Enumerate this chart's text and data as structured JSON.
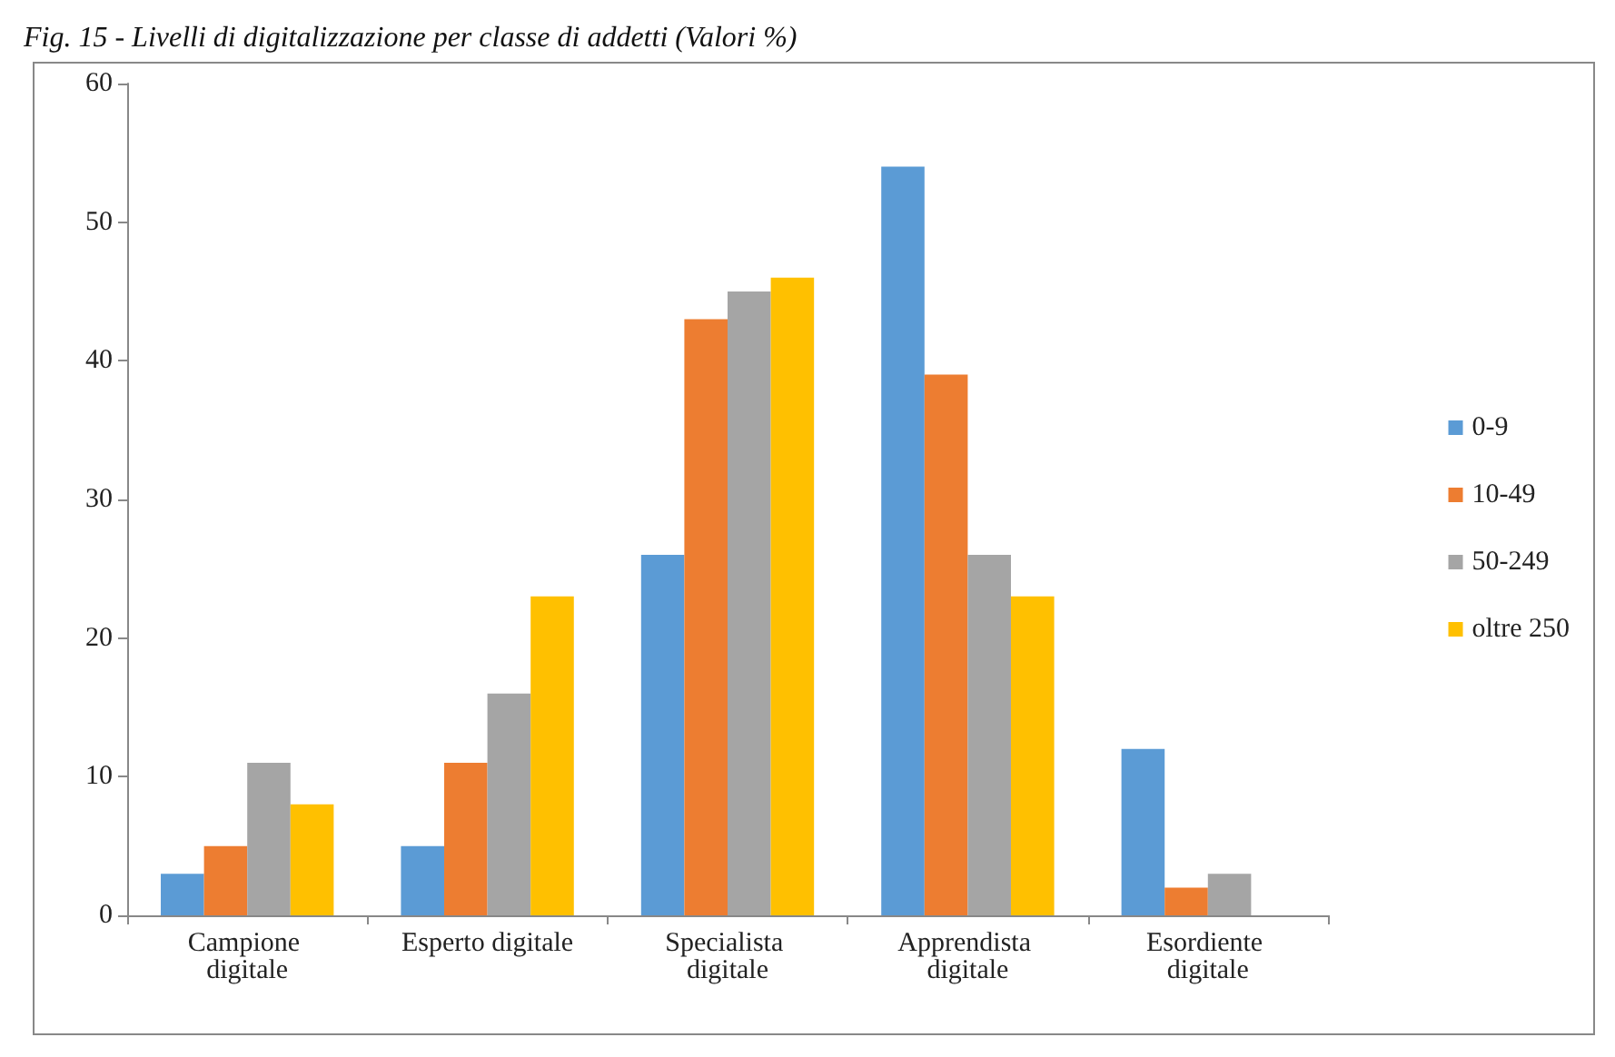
{
  "chart_data": {
    "type": "bar",
    "title": "Fig. 15 - Livelli di digitalizzazione per classe di addetti (Valori %)",
    "categories": [
      "Campione digitale",
      "Esperto digitale",
      "Specialista digitale",
      "Apprendista digitale",
      "Esordiente digitale"
    ],
    "series": [
      {
        "name": "0-9",
        "color": "#5b9bd5",
        "values": [
          3,
          5,
          26,
          54,
          12
        ]
      },
      {
        "name": "10-49",
        "color": "#ed7d31",
        "values": [
          5,
          11,
          43,
          39,
          2
        ]
      },
      {
        "name": "50-249",
        "color": "#a5a5a5",
        "values": [
          11,
          16,
          45,
          26,
          3
        ]
      },
      {
        "name": "oltre 250",
        "color": "#ffc000",
        "values": [
          8,
          23,
          46,
          23,
          0
        ]
      }
    ],
    "ylim": [
      0,
      60
    ],
    "yticks": [
      0,
      10,
      20,
      30,
      40,
      50,
      60
    ],
    "grid": false,
    "legend": "right"
  }
}
